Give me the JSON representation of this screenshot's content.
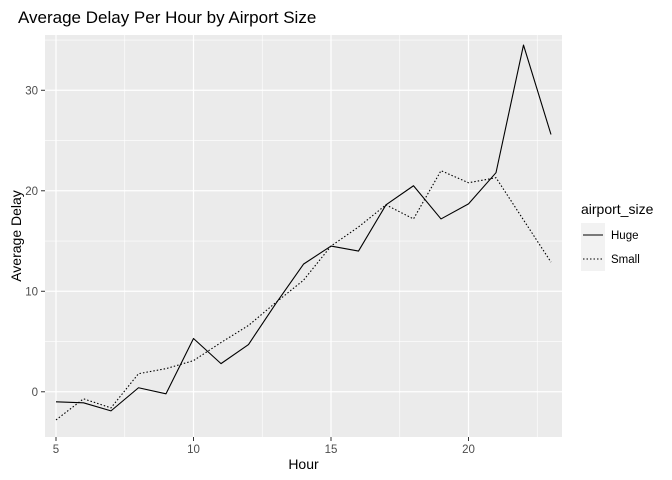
{
  "chart_data": {
    "type": "line",
    "title": "Average Delay Per Hour by Airport Size",
    "xlabel": "Hour",
    "ylabel": "Average Delay",
    "xlim": [
      4.6,
      23.4
    ],
    "ylim": [
      -4.5,
      35.5
    ],
    "x_ticks": [
      5,
      10,
      15,
      20
    ],
    "y_ticks": [
      0,
      10,
      20,
      30
    ],
    "grid": true,
    "legend": {
      "title": "airport_size",
      "placement": "right"
    },
    "series": [
      {
        "name": "Huge",
        "line_style": "solid",
        "x": [
          5,
          6,
          7,
          8,
          9,
          10,
          11,
          12,
          13,
          14,
          15,
          16,
          17,
          18,
          19,
          20,
          21,
          22,
          23
        ],
        "y": [
          -1.0,
          -1.1,
          -1.9,
          0.4,
          -0.2,
          5.3,
          2.8,
          4.7,
          8.8,
          12.7,
          14.5,
          14.0,
          18.6,
          20.5,
          17.2,
          18.7,
          21.8,
          34.5,
          25.6
        ]
      },
      {
        "name": "Small",
        "line_style": "dotted",
        "x": [
          5,
          6,
          7,
          8,
          9,
          10,
          11,
          12,
          13,
          14,
          15,
          16,
          17,
          18,
          19,
          20,
          21,
          22,
          23
        ],
        "y": [
          -2.8,
          -0.7,
          -1.6,
          1.8,
          2.3,
          3.1,
          4.9,
          6.6,
          8.9,
          11.1,
          14.5,
          16.4,
          18.6,
          17.2,
          22.0,
          20.8,
          21.3,
          17.1,
          12.9
        ]
      }
    ]
  }
}
